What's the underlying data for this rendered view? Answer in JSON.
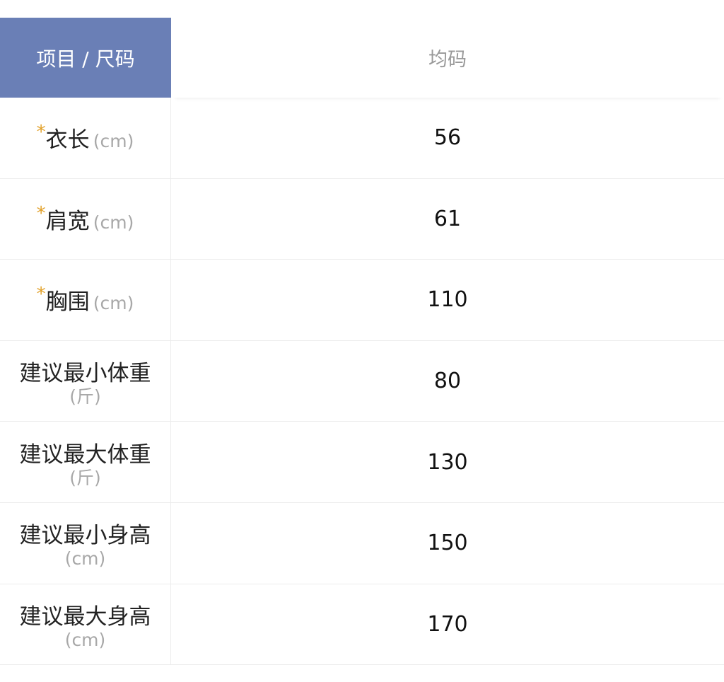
{
  "header": {
    "item_size": "项目 / 尺码",
    "size": "均码"
  },
  "rows": [
    {
      "required": true,
      "label": "衣长",
      "unit": "(cm)",
      "value": "56"
    },
    {
      "required": true,
      "label": "肩宽",
      "unit": "(cm)",
      "value": "61"
    },
    {
      "required": true,
      "label": "胸围",
      "unit": "(cm)",
      "value": "110"
    },
    {
      "required": false,
      "label": "建议最小体重",
      "unit": "(斤)",
      "value": "80"
    },
    {
      "required": false,
      "label": "建议最大体重",
      "unit": "(斤)",
      "value": "130"
    },
    {
      "required": false,
      "label": "建议最小身高",
      "unit": "(cm)",
      "value": "150"
    },
    {
      "required": false,
      "label": "建议最大身高",
      "unit": "(cm)",
      "value": "170"
    }
  ],
  "star": "*",
  "colors": {
    "header_bg": "#6a7fb6",
    "required_star": "#e2a12a"
  }
}
